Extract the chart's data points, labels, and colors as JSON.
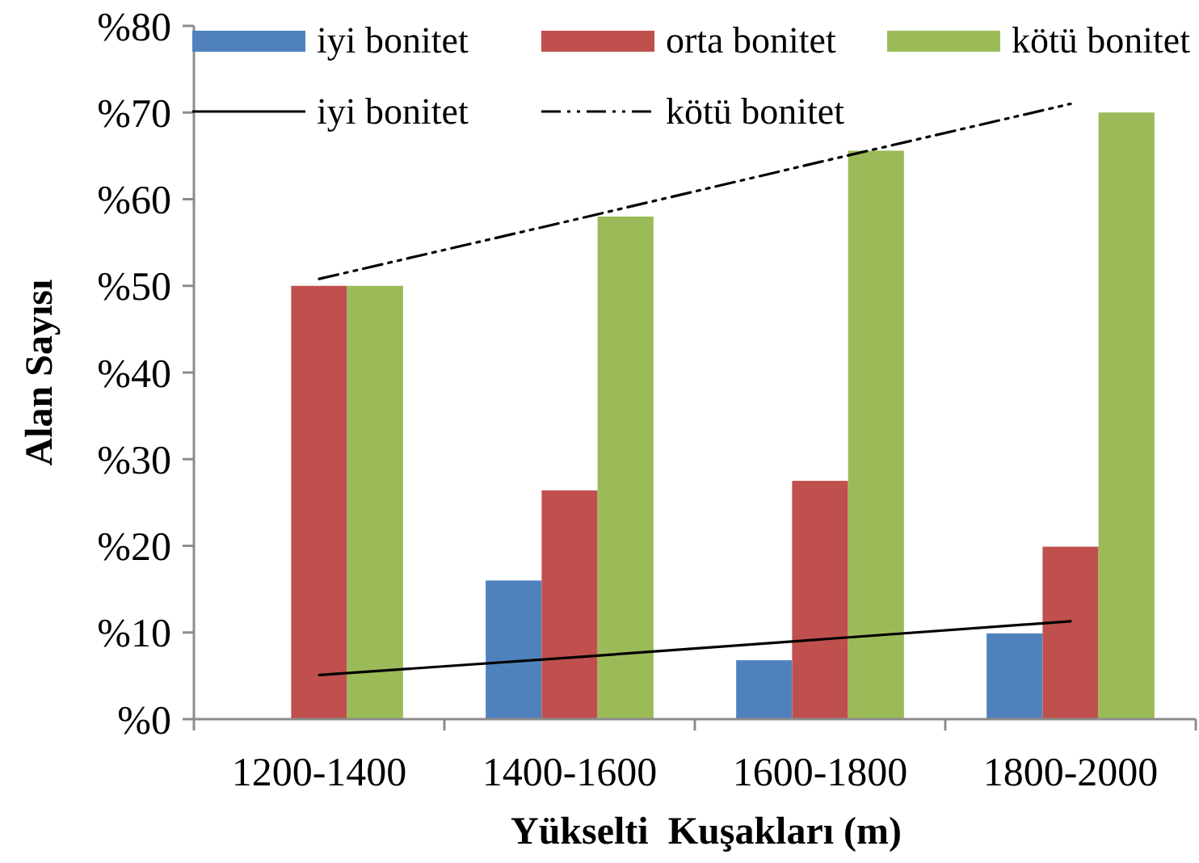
{
  "chart_data": {
    "type": "bar",
    "xlabel": "Yükselti  Kuşakları (m)",
    "ylabel": "Alan Sayısı",
    "categories": [
      "1200-1400",
      "1400-1600",
      "1600-1800",
      "1800-2000"
    ],
    "series": [
      {
        "name": "iyi bonitet",
        "color": "#4f81bd",
        "values": [
          0,
          16,
          6.8,
          9.9
        ]
      },
      {
        "name": "orta bonitet",
        "color": "#c0504d",
        "values": [
          50,
          26.4,
          27.5,
          19.9
        ]
      },
      {
        "name": "kötü bonitet",
        "color": "#9bbb59",
        "values": [
          50,
          58,
          65.6,
          70
        ]
      },
      {
        "name": "iyi bonitet",
        "type": "line",
        "color": "#000000",
        "line_style": "solid",
        "values": [
          5.1,
          7.1,
          9.2,
          11.3
        ]
      },
      {
        "name": "kötü bonitet",
        "type": "line",
        "color": "#000000",
        "line_style": "dashed",
        "values": [
          50.8,
          57.5,
          64.3,
          71
        ]
      }
    ],
    "ylim": [
      0,
      80
    ],
    "yticks": [
      {
        "value": 0,
        "label": "%0"
      },
      {
        "value": 10,
        "label": "%10"
      },
      {
        "value": 20,
        "label": "%20"
      },
      {
        "value": 30,
        "label": "%30"
      },
      {
        "value": 40,
        "label": "%40"
      },
      {
        "value": 50,
        "label": "%50"
      },
      {
        "value": 60,
        "label": "%60"
      },
      {
        "value": 70,
        "label": "%70"
      },
      {
        "value": 80,
        "label": "%80"
      }
    ],
    "legend": "top"
  }
}
